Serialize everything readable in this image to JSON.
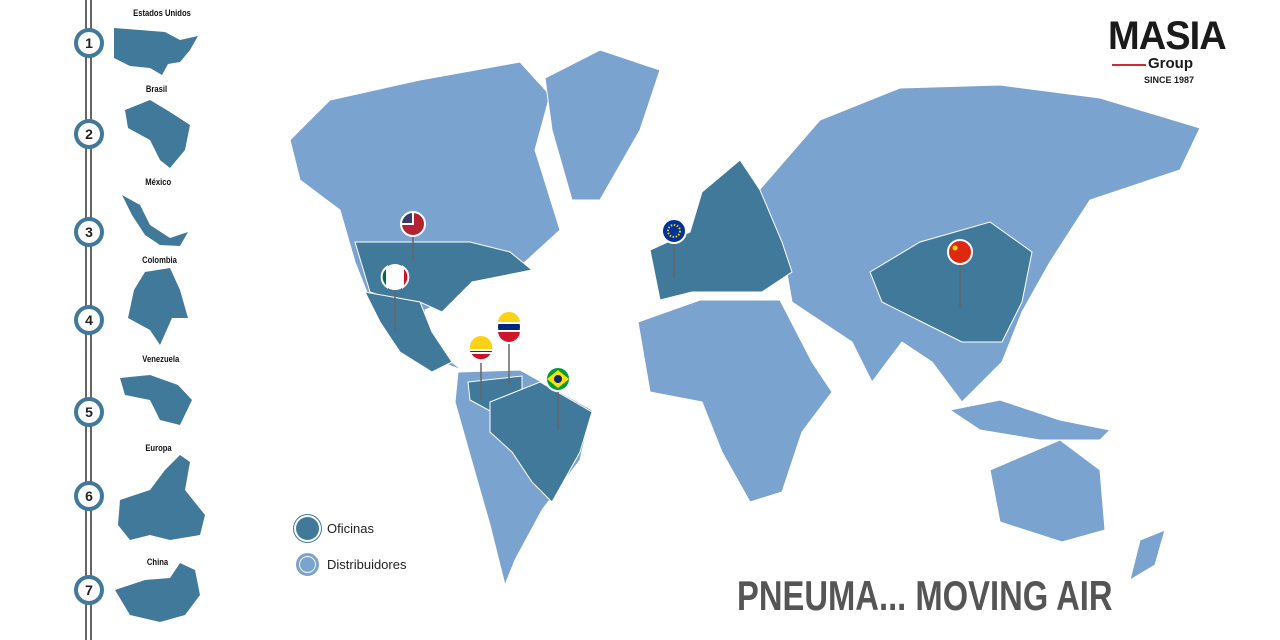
{
  "logo": {
    "name": "MASIA",
    "sub": "Group",
    "since": "SINCE 1987"
  },
  "steps": [
    {
      "n": "1",
      "label": "Estados Unidos"
    },
    {
      "n": "2",
      "label": "Brasil"
    },
    {
      "n": "3",
      "label": "México"
    },
    {
      "n": "4",
      "label": "Colombia"
    },
    {
      "n": "5",
      "label": "Venezuela"
    },
    {
      "n": "6",
      "label": "Europa"
    },
    {
      "n": "7",
      "label": "China"
    }
  ],
  "legend": {
    "offices": "Oficinas",
    "distributors": "Distribuidores"
  },
  "colors": {
    "offices": "#41799a",
    "distributors": "#7ba3cf",
    "accent": "#d7262c"
  },
  "tagline": "PNEUMA... MOVING AIR",
  "pins": [
    "usa-flag",
    "mexico-flag",
    "colombia-flag",
    "venezuela-flag",
    "brazil-flag",
    "eu-flag",
    "china-flag"
  ]
}
